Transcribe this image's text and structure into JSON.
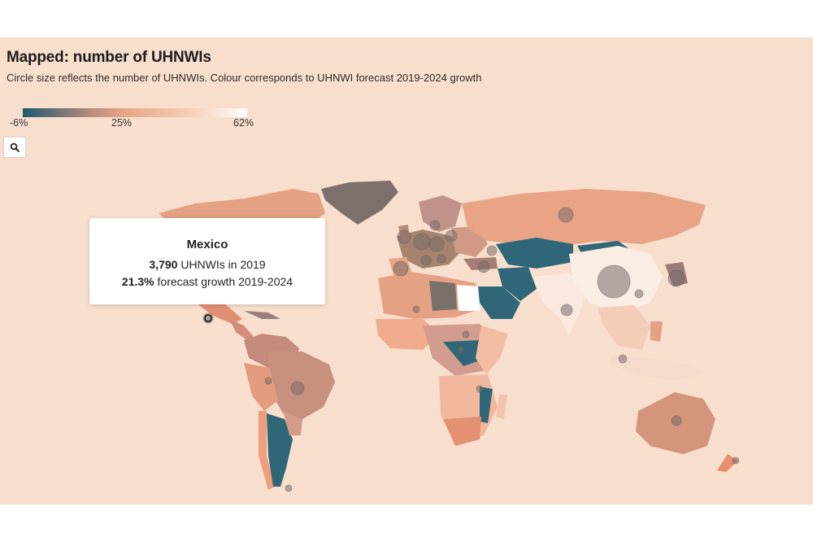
{
  "header": {
    "title": "Mapped: number of UHNWIs",
    "subtitle": "Circle size reflects the number of UHNWIs. Colour corresponds to UHNWI forecast 2019-2024 growth"
  },
  "legend": {
    "min_label": "-6%",
    "mid_label": "25%",
    "max_label": "62%",
    "colors": [
      "#1f5970",
      "#b88a7e",
      "#e8a587",
      "#f5cfb7",
      "#ffffff"
    ]
  },
  "controls": {
    "zoom_icon": "search-icon"
  },
  "tooltip": {
    "country": "Mexico",
    "count_value": "3,790",
    "count_suffix": " UHNWIs in 2019",
    "growth_value": "21.3%",
    "growth_suffix": " forecast growth 2019-2024"
  },
  "colors": {
    "background": "#f8dfcd",
    "land_default": "#e8a587",
    "bubble": "#7a6c6a"
  }
}
